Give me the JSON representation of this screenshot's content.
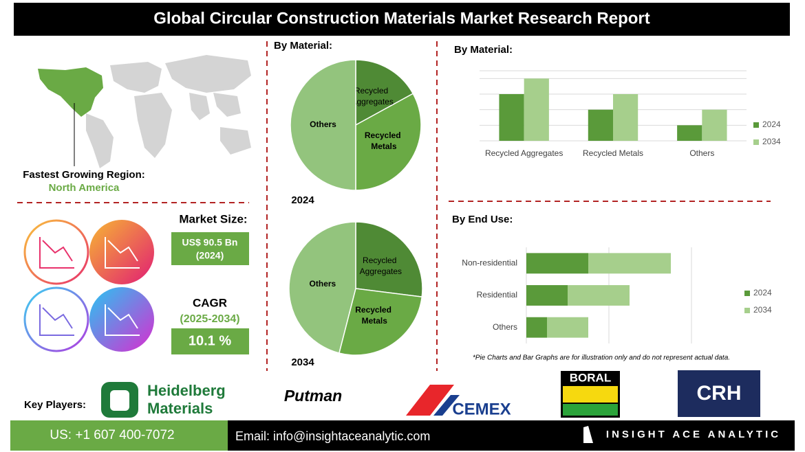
{
  "header": {
    "title": "Global Circular Construction Materials Market Research Report"
  },
  "region": {
    "label": "Fastest Growing Region:",
    "value": "North America"
  },
  "market_size": {
    "label": "Market Size:",
    "value": "US$ 90.5 Bn",
    "year": "(2024)"
  },
  "cagr": {
    "label": "CAGR",
    "period": "(2025-2034)",
    "value": "10.1 %"
  },
  "key_players": {
    "label": "Key Players:",
    "names": [
      "Heidelberg Materials",
      "Putman",
      "CEMEX",
      "BORAL",
      "CRH"
    ]
  },
  "note": "*Pie Charts and Bar Graphs are for illustration only and do not represent actual data.",
  "footer": {
    "phone": "US: +1 607 400-7072",
    "email": "Email: info@insightaceanalytic.com",
    "brand": "INSIGHT ACE ANALYTIC"
  },
  "chart_data": [
    {
      "type": "pie",
      "title": "By Material:",
      "label": "2024",
      "categories": [
        "Recycled Aggregates",
        "Recycled Metals",
        "Others"
      ],
      "values": [
        17,
        33,
        50
      ],
      "colors": [
        "#4f8a35",
        "#6aaa45",
        "#93c47d"
      ]
    },
    {
      "type": "pie",
      "label": "2034",
      "categories": [
        "Recycled Aggregates",
        "Recycled Metals",
        "Others"
      ],
      "values": [
        27,
        27,
        46
      ],
      "colors": [
        "#4f8a35",
        "#6aaa45",
        "#93c47d"
      ]
    },
    {
      "type": "bar",
      "title": "By Material:",
      "categories": [
        "Recycled Aggregates",
        "Recycled Metals",
        "Others"
      ],
      "series": [
        {
          "name": "2024",
          "color": "#5a9a3a",
          "values": [
            3,
            2,
            1
          ]
        },
        {
          "name": "2034",
          "color": "#a6cf8c",
          "values": [
            4,
            3,
            2
          ]
        }
      ],
      "ylim": [
        0,
        4.5
      ],
      "yticks": [
        0,
        1,
        2,
        3,
        4
      ],
      "grid": true,
      "legend": "right"
    },
    {
      "type": "hbar-stacked",
      "title": "By End Use:",
      "categories": [
        "Non-residential",
        "Residential",
        "Others"
      ],
      "series": [
        {
          "name": "2024",
          "color": "#5a9a3a",
          "values": [
            3,
            2,
            1
          ]
        },
        {
          "name": "2034",
          "color": "#a6cf8c",
          "values": [
            4,
            3,
            2
          ]
        }
      ],
      "xlim": [
        0,
        8
      ],
      "xticks": [
        0,
        4,
        8
      ],
      "grid": true,
      "legend": "right"
    }
  ]
}
